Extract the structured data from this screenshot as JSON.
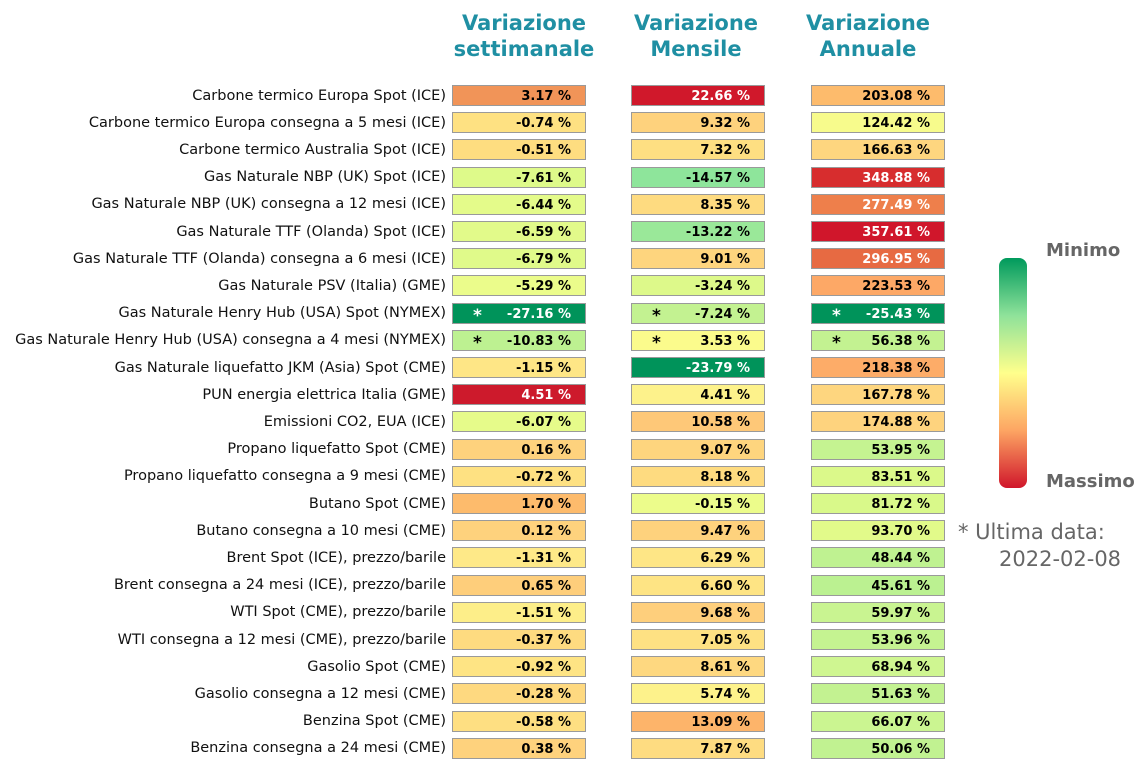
{
  "chart_data": {
    "type": "table",
    "columns": [
      "Variazione settimanale",
      "Variazione Mensile",
      "Variazione Annuale"
    ],
    "column_headers": [
      [
        "Variazione",
        "settimanale"
      ],
      [
        "Variazione",
        "Mensile"
      ],
      [
        "Variazione",
        "Annuale"
      ]
    ],
    "rows": [
      {
        "label": "Carbone termico Europa Spot (ICE)",
        "values": [
          "3.17 %",
          "22.66 %",
          "203.08 %"
        ],
        "colors": [
          "#f19458",
          "#d0182b",
          "#fdbb6c"
        ],
        "stars": [
          false,
          false,
          false
        ]
      },
      {
        "label": "Carbone termico Europa consegna a 5 mesi (ICE)",
        "values": [
          "-0.74 %",
          "9.32 %",
          "124.42 %"
        ],
        "colors": [
          "#fee182",
          "#fed27d",
          "#f7fb8c"
        ],
        "stars": [
          false,
          false,
          false
        ]
      },
      {
        "label": "Carbone termico Australia Spot (ICE)",
        "values": [
          "-0.51 %",
          "7.32 %",
          "166.63 %"
        ],
        "colors": [
          "#fedd80",
          "#fedf82",
          "#fed67f"
        ],
        "stars": [
          false,
          false,
          false
        ]
      },
      {
        "label": "Gas Naturale NBP (UK) Spot (ICE)",
        "values": [
          "-7.61 %",
          "-14.57 %",
          "348.88 %"
        ],
        "colors": [
          "#defa8a",
          "#8ee59b",
          "#d72d2e"
        ],
        "stars": [
          false,
          false,
          false
        ]
      },
      {
        "label": "Gas Naturale NBP (UK) consegna a 12 mesi (ICE)",
        "values": [
          "-6.44 %",
          "8.35 %",
          "277.49 %"
        ],
        "colors": [
          "#e4fb8a",
          "#fedb80",
          "#ee7f4b"
        ],
        "stars": [
          false,
          false,
          false
        ]
      },
      {
        "label": "Gas Naturale TTF (Olanda) Spot (ICE)",
        "values": [
          "-6.59 %",
          "-13.22 %",
          "357.61 %"
        ],
        "colors": [
          "#e2fa8a",
          "#9ae899",
          "#d0162b"
        ],
        "stars": [
          false,
          false,
          false
        ]
      },
      {
        "label": "Gas Naturale TTF (Olanda) consegna a 6 mesi (ICE)",
        "values": [
          "-6.79 %",
          "9.01 %",
          "296.95 %"
        ],
        "colors": [
          "#e0fa8a",
          "#fed57e",
          "#e76a42"
        ],
        "stars": [
          false,
          false,
          false
        ]
      },
      {
        "label": "Gas Naturale PSV (Italia) (GME)",
        "values": [
          "-5.29 %",
          "-3.24 %",
          "223.53 %"
        ],
        "colors": [
          "#ebfc8b",
          "#ddf98a",
          "#fda866"
        ],
        "stars": [
          false,
          false,
          false
        ]
      },
      {
        "label": "Gas Naturale Henry Hub (USA) Spot (NYMEX)",
        "values": [
          "-27.16 %",
          "-7.24 %",
          "-25.43 %"
        ],
        "colors": [
          "#00935a",
          "#c3f291",
          "#00935a"
        ],
        "stars": [
          true,
          true,
          true
        ]
      },
      {
        "label": "Gas Naturale Henry Hub (USA) consegna a 4 mesi (NYMEX)",
        "values": [
          "-10.83 %",
          "3.53 %",
          "56.38 %"
        ],
        "colors": [
          "#bdf191",
          "#fbfb8c",
          "#c3f291"
        ],
        "stars": [
          true,
          true,
          true
        ]
      },
      {
        "label": "Gas Naturale liquefatto JKM (Asia) Spot (CME)",
        "values": [
          "-1.15 %",
          "-23.79 %",
          "218.38 %"
        ],
        "colors": [
          "#fee686",
          "#00935a",
          "#fdac68"
        ],
        "stars": [
          false,
          false,
          false
        ]
      },
      {
        "label": "PUN energia elettrica Italia (GME)",
        "values": [
          "4.51 %",
          "4.41 %",
          "167.78 %"
        ],
        "colors": [
          "#cd1a2c",
          "#fdf28b",
          "#fed67f"
        ],
        "stars": [
          false,
          false,
          false
        ]
      },
      {
        "label": "Emissioni CO2, EUA (ICE)",
        "values": [
          "-6.07 %",
          "10.58 %",
          "174.88 %"
        ],
        "colors": [
          "#e6fb8a",
          "#fec878",
          "#fed37e"
        ],
        "stars": [
          false,
          false,
          false
        ]
      },
      {
        "label": "Propano liquefatto Spot (CME)",
        "values": [
          "0.16 %",
          "9.07 %",
          "53.95 %"
        ],
        "colors": [
          "#fed27d",
          "#fed57e",
          "#c5f391"
        ],
        "stars": [
          false,
          false,
          false
        ]
      },
      {
        "label": "Propano liquefatto consegna a 9 mesi (CME)",
        "values": [
          "-0.72 %",
          "8.18 %",
          "83.51 %"
        ],
        "colors": [
          "#fee182",
          "#fedb80",
          "#dbf98a"
        ],
        "stars": [
          false,
          false,
          false
        ]
      },
      {
        "label": "Butano Spot (CME)",
        "values": [
          "1.70 %",
          "-0.15 %",
          "81.72 %"
        ],
        "colors": [
          "#fdbb6c",
          "#ecfc8b",
          "#d9f98a"
        ],
        "stars": [
          false,
          false,
          false
        ]
      },
      {
        "label": "Butano consegna a 10 mesi (CME)",
        "values": [
          "0.12 %",
          "9.47 %",
          "93.70 %"
        ],
        "colors": [
          "#fed27d",
          "#fed27d",
          "#e2fa8a"
        ],
        "stars": [
          false,
          false,
          false
        ]
      },
      {
        "label": "Brent Spot (ICE), prezzo/barile",
        "values": [
          "-1.31 %",
          "6.29 %",
          "48.44 %"
        ],
        "colors": [
          "#fee988",
          "#fee686",
          "#bff291"
        ],
        "stars": [
          false,
          false,
          false
        ]
      },
      {
        "label": "Brent consegna a 24 mesi (ICE), prezzo/barile",
        "values": [
          "0.65 %",
          "6.60 %",
          "45.61 %"
        ],
        "colors": [
          "#fece7b",
          "#fee484",
          "#bbf191"
        ],
        "stars": [
          false,
          false,
          false
        ]
      },
      {
        "label": "WTI Spot (CME), prezzo/barile",
        "values": [
          "-1.51 %",
          "9.68 %",
          "59.97 %"
        ],
        "colors": [
          "#fdee89",
          "#fecf7c",
          "#c9f491"
        ],
        "stars": [
          false,
          false,
          false
        ]
      },
      {
        "label": "WTI consegna a 12 mesi (CME), prezzo/barile",
        "values": [
          "-0.37 %",
          "7.05 %",
          "53.96 %"
        ],
        "colors": [
          "#fedb80",
          "#fee183",
          "#c5f391"
        ],
        "stars": [
          false,
          false,
          false
        ]
      },
      {
        "label": "Gasolio Spot (CME)",
        "values": [
          "-0.92 %",
          "8.61 %",
          "68.94 %"
        ],
        "colors": [
          "#fee484",
          "#fed880",
          "#cff691"
        ],
        "stars": [
          false,
          false,
          false
        ]
      },
      {
        "label": "Gasolio consegna a 12 mesi (CME)",
        "values": [
          "-0.28 %",
          "5.74 %",
          "51.63 %"
        ],
        "colors": [
          "#fed980",
          "#fdf28b",
          "#c3f291"
        ],
        "stars": [
          false,
          false,
          false
        ]
      },
      {
        "label": "Benzina Spot (CME)",
        "values": [
          "-0.58 %",
          "13.09 %",
          "66.07 %"
        ],
        "colors": [
          "#fedf82",
          "#fdb46a",
          "#cbf591"
        ],
        "stars": [
          false,
          false,
          false
        ]
      },
      {
        "label": "Benzina consegna a 24 mesi (CME)",
        "values": [
          "0.38 %",
          "7.87 %",
          "50.06 %"
        ],
        "colors": [
          "#fed27d",
          "#fedc81",
          "#c1f291"
        ],
        "stars": [
          false,
          false,
          false
        ]
      }
    ],
    "colorscale": [
      "#009a5c",
      "#8fe29a",
      "#ffff8c",
      "#fda563",
      "#d0162b"
    ],
    "legend": {
      "min_label": "Minimo",
      "max_label": "Massimo",
      "placement": "right"
    },
    "star_marker": "*",
    "footnote": [
      "* Ultima data:",
      "2022-02-08"
    ],
    "grid": false
  }
}
